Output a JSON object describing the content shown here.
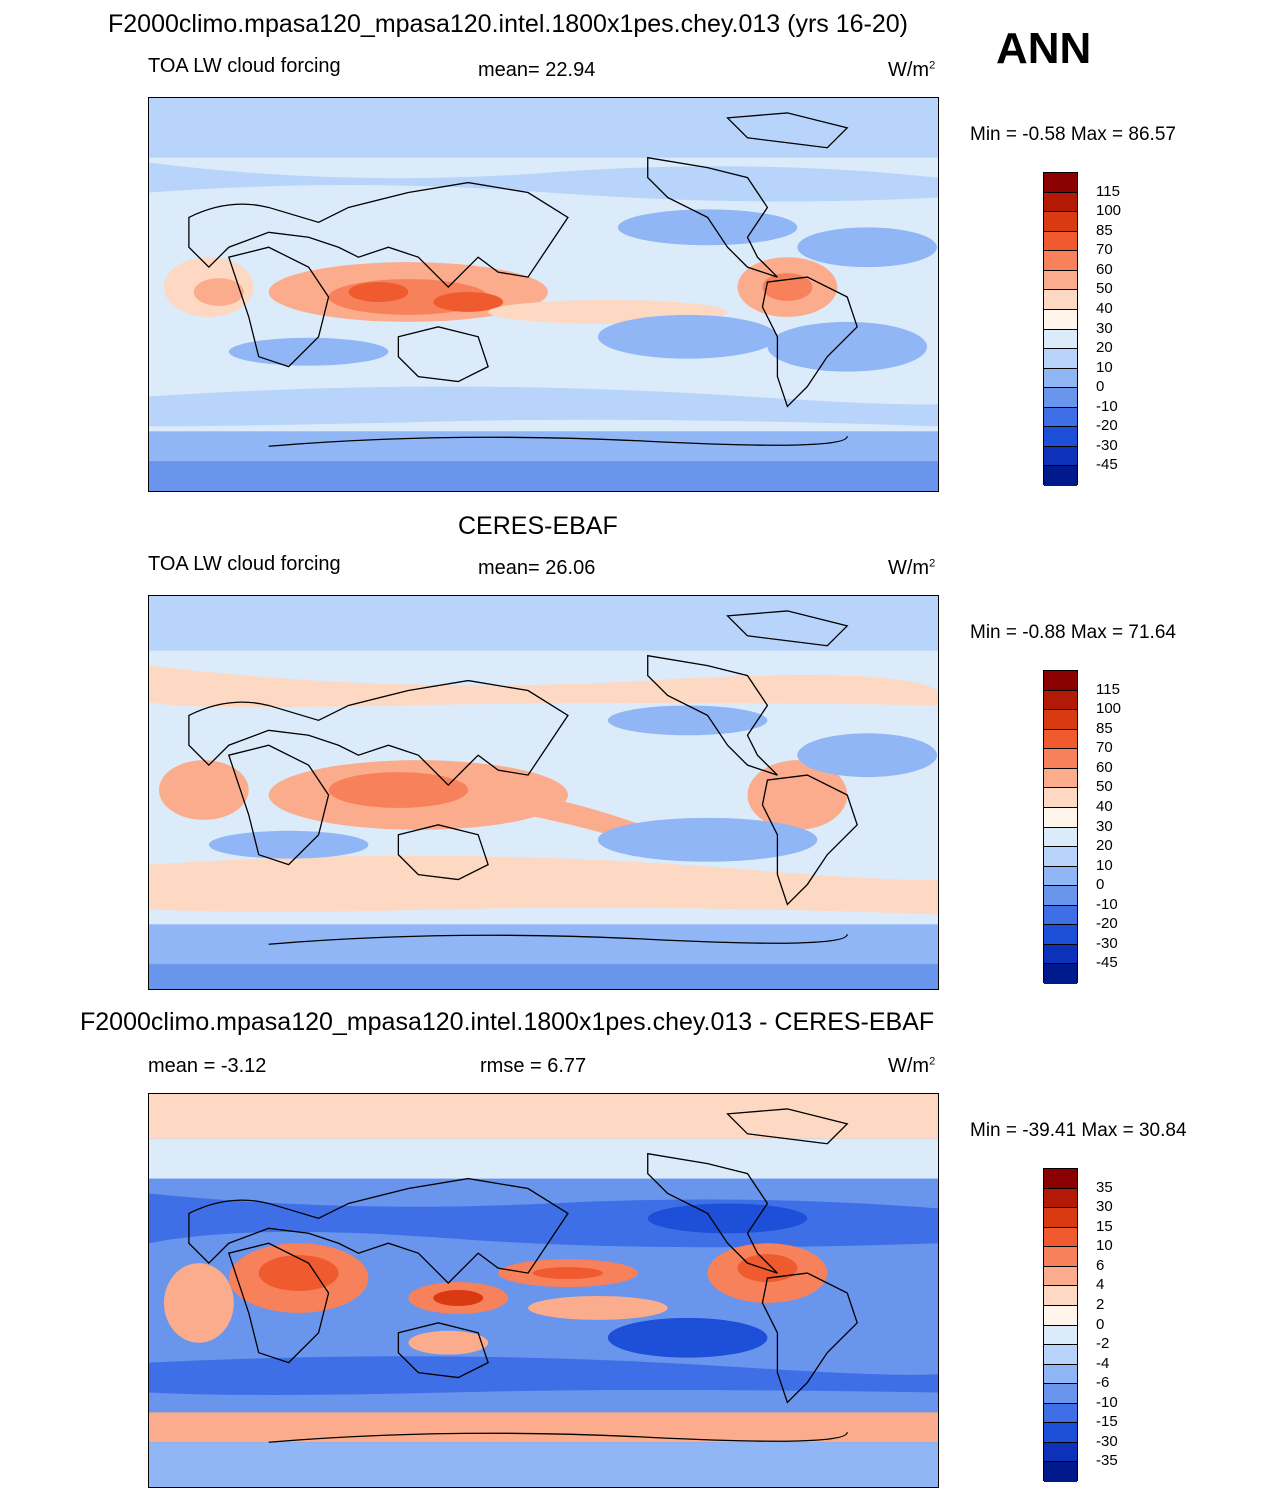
{
  "header": {
    "title": "F2000climo.mpasa120_mpasa120.intel.1800x1pes.chey.013 (yrs 16-20)",
    "season": "ANN"
  },
  "panels": [
    {
      "id": "model",
      "heading": "",
      "left_label": "TOA LW cloud forcing",
      "center_label": "mean=  22.94",
      "units": "W/m",
      "units_sup": "2",
      "minmax": "Min =  -0.58 Max =  86.57",
      "colorbar_labels": [
        "115",
        "100",
        "85",
        "70",
        "60",
        "50",
        "40",
        "30",
        "20",
        "10",
        "0",
        "-10",
        "-20",
        "-30",
        "-45"
      ],
      "colorbar_colors": [
        "#8b0000",
        "#b31a06",
        "#d93a12",
        "#ef5a2e",
        "#f7815a",
        "#fbac8c",
        "#fdd8c2",
        "#fff5ea",
        "#dcebfa",
        "#b9d4fa",
        "#90b6f5",
        "#6995ed",
        "#3f6fe6",
        "#1e4fd9",
        "#0d31b8",
        "#001a8c"
      ]
    },
    {
      "id": "obs",
      "heading": "CERES-EBAF",
      "left_label": "TOA LW cloud forcing",
      "center_label": "mean=  26.06",
      "units": "W/m",
      "units_sup": "2",
      "minmax": "Min =  -0.88 Max =  71.64",
      "colorbar_labels": [
        "115",
        "100",
        "85",
        "70",
        "60",
        "50",
        "40",
        "30",
        "20",
        "10",
        "0",
        "-10",
        "-20",
        "-30",
        "-45"
      ],
      "colorbar_colors": [
        "#8b0000",
        "#b31a06",
        "#d93a12",
        "#ef5a2e",
        "#f7815a",
        "#fbac8c",
        "#fdd8c2",
        "#fff5ea",
        "#dcebfa",
        "#b9d4fa",
        "#90b6f5",
        "#6995ed",
        "#3f6fe6",
        "#1e4fd9",
        "#0d31b8",
        "#001a8c"
      ]
    },
    {
      "id": "diff",
      "heading": "F2000climo.mpasa120_mpasa120.intel.1800x1pes.chey.013 - CERES-EBAF",
      "left_label": "mean =  -3.12",
      "center_label": "rmse =   6.77",
      "units": "W/m",
      "units_sup": "2",
      "minmax": "Min = -39.41 Max =  30.84",
      "colorbar_labels": [
        "35",
        "30",
        "15",
        "10",
        "6",
        "4",
        "2",
        "0",
        "-2",
        "-4",
        "-6",
        "-10",
        "-15",
        "-30",
        "-35"
      ],
      "colorbar_colors": [
        "#8b0000",
        "#b31a06",
        "#d93a12",
        "#ef5a2e",
        "#f7815a",
        "#fbac8c",
        "#fdd8c2",
        "#fff5ea",
        "#dcebfa",
        "#b9d4fa",
        "#90b6f5",
        "#6995ed",
        "#3f6fe6",
        "#1e4fd9",
        "#0d31b8",
        "#001a8c"
      ]
    }
  ]
}
